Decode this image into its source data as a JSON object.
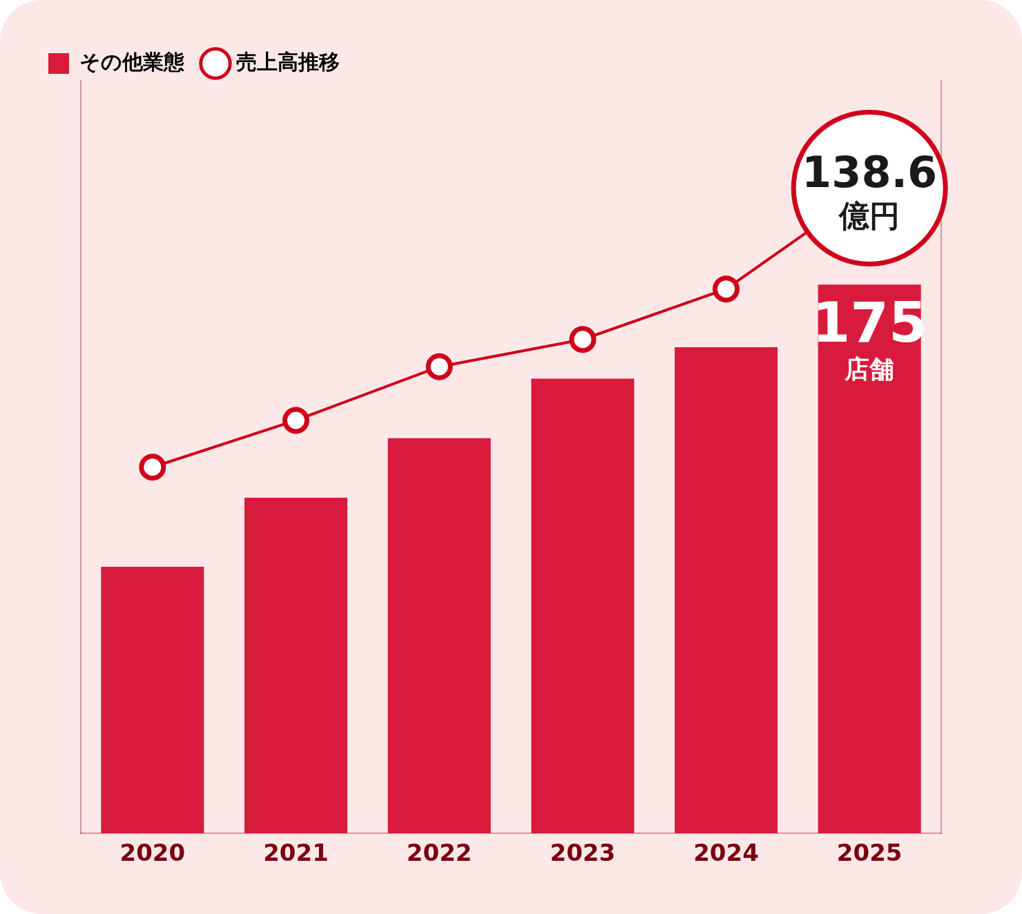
{
  "chart_data": {
    "type": "bar",
    "categories": [
      "2020",
      "2021",
      "2022",
      "2023",
      "2024",
      "2025"
    ],
    "series": [
      {
        "name": "その他業態",
        "type": "bar",
        "color": "#d81b3c",
        "values": [
          85,
          107,
          126,
          145,
          155,
          175
        ],
        "value_labels": [
          null,
          null,
          null,
          null,
          null,
          "175店舗"
        ]
      },
      {
        "name": "売上高推移",
        "type": "line",
        "axis": "y2",
        "color": "#d0021b",
        "marker": "circle",
        "values": [
          70,
          81.5,
          94.7,
          101.4,
          113.8,
          138.6
        ],
        "value_labels": [
          null,
          null,
          null,
          null,
          null,
          "138.6億円"
        ]
      }
    ],
    "ylim": [
      0,
      240
    ],
    "y2lim": [
      -20,
      165
    ],
    "grid": false,
    "legend": "upper left",
    "data_labels": true,
    "tick_labels": "x"
  }
}
